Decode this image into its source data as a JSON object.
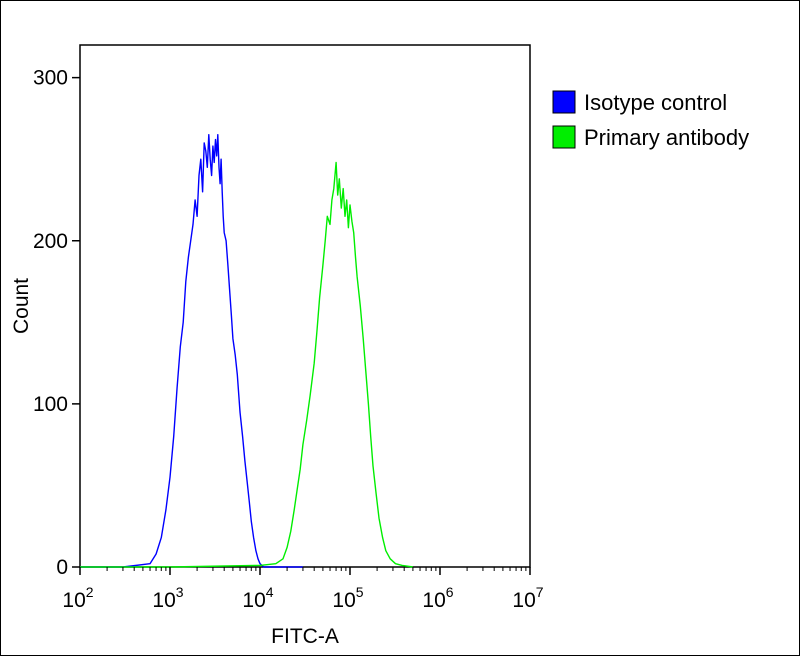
{
  "chart_data": {
    "type": "line",
    "xlabel": "FITC-A",
    "ylabel": "Count",
    "x_scale": "log",
    "xlim": [
      100,
      10000000
    ],
    "ylim": [
      0,
      320
    ],
    "x_ticks": [
      {
        "value": 100,
        "base": "10",
        "exp": "2"
      },
      {
        "value": 1000,
        "base": "10",
        "exp": "3"
      },
      {
        "value": 10000,
        "base": "10",
        "exp": "4"
      },
      {
        "value": 100000,
        "base": "10",
        "exp": "5"
      },
      {
        "value": 1000000,
        "base": "10",
        "exp": "6"
      },
      {
        "value": 10000000,
        "base": "10",
        "exp": "7"
      }
    ],
    "y_ticks": [
      0,
      100,
      200,
      300
    ],
    "grid": false,
    "legend_position": "top-right",
    "series": [
      {
        "name": "Isotype control",
        "color": "#0000ff",
        "x": [
          100,
          300,
          600,
          700,
          800,
          900,
          1000,
          1100,
          1200,
          1300,
          1400,
          1500,
          1600,
          1700,
          1800,
          1900,
          2000,
          2100,
          2200,
          2300,
          2400,
          2500,
          2600,
          2700,
          2800,
          2900,
          3000,
          3100,
          3200,
          3300,
          3400,
          3500,
          3600,
          3700,
          3800,
          3900,
          4000,
          4200,
          4400,
          4600,
          4800,
          5000,
          5300,
          5600,
          6000,
          6400,
          6800,
          7200,
          7600,
          8000,
          8500,
          9000,
          9500,
          10000,
          10500,
          11000,
          12000,
          15000,
          30000
        ],
        "y": [
          0,
          0,
          2,
          8,
          18,
          35,
          55,
          80,
          110,
          135,
          150,
          175,
          190,
          200,
          210,
          225,
          215,
          240,
          250,
          230,
          260,
          255,
          245,
          265,
          250,
          240,
          258,
          248,
          262,
          252,
          265,
          245,
          235,
          250,
          230,
          215,
          205,
          200,
          185,
          170,
          155,
          140,
          130,
          118,
          95,
          80,
          65,
          52,
          40,
          28,
          18,
          10,
          5,
          2,
          1,
          0,
          0,
          0,
          0
        ]
      },
      {
        "name": "Primary antibody",
        "color": "#00ee00",
        "x": [
          100,
          1000,
          10000,
          15000,
          18000,
          20000,
          22000,
          24000,
          26000,
          28000,
          30000,
          33000,
          36000,
          40000,
          43000,
          46000,
          50000,
          53000,
          56000,
          60000,
          63000,
          66000,
          70000,
          73000,
          76000,
          80000,
          84000,
          88000,
          92000,
          96000,
          100000,
          105000,
          110000,
          115000,
          120000,
          130000,
          140000,
          150000,
          160000,
          170000,
          180000,
          195000,
          210000,
          230000,
          250000,
          280000,
          320000,
          380000,
          500000
        ],
        "y": [
          0,
          0,
          1,
          2,
          5,
          12,
          22,
          35,
          48,
          60,
          75,
          90,
          105,
          125,
          145,
          165,
          185,
          200,
          215,
          210,
          225,
          232,
          248,
          228,
          238,
          220,
          232,
          215,
          225,
          208,
          222,
          212,
          205,
          190,
          178,
          160,
          140,
          120,
          100,
          80,
          62,
          45,
          30,
          18,
          10,
          5,
          2,
          1,
          0
        ]
      }
    ]
  }
}
